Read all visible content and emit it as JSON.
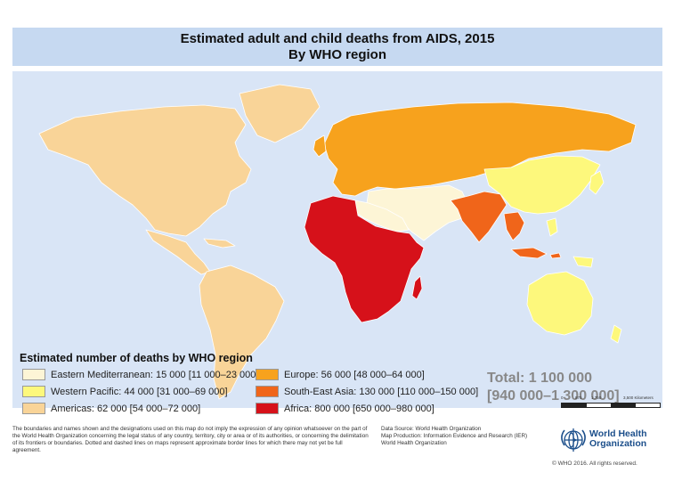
{
  "title": {
    "line1": "Estimated adult and child deaths from AIDS, 2015",
    "line2": "By WHO region"
  },
  "legend": {
    "title": "Estimated number of deaths by WHO region",
    "items": [
      {
        "label": "Eastern Mediterranean: 15 000 [11 000–23 000]",
        "color": "#fdf5d6"
      },
      {
        "label": "Western Pacific: 44 000 [31 000–69 000]",
        "color": "#fdf87c"
      },
      {
        "label": "Americas: 62 000 [54 000–72 000]",
        "color": "#f9d498"
      },
      {
        "label": "Europe: 56 000 [48 000–64 000]",
        "color": "#f7a21d"
      },
      {
        "label": "South-East Asia: 130 000 [110 000–150 000]",
        "color": "#f0651a"
      },
      {
        "label": "Africa: 800 000 [650 000–980 000]",
        "color": "#d6111a"
      }
    ]
  },
  "total": {
    "line1": "Total: 1 100 000",
    "line2": "[940 000–1 300 000]"
  },
  "scale": {
    "ticks": [
      "0",
      "875",
      "1,750",
      "3,500 Kilometers"
    ]
  },
  "disclaimer": "The boundaries and names shown and the designations used on this map do not imply the expression of any opinion whatsoever on the part of the World Health Organization concerning the legal status of any country, territory, city or area or of its authorities, or concerning the delimitation of its frontiers or boundaries. Dotted and dashed lines on maps represent approximate border lines for which there may not yet be full agreement.",
  "credits": {
    "source": "Data Source: World Health Organization",
    "production": "Map Production: Information Evidence and Research (IER)",
    "org": "World Health Organization"
  },
  "logo": {
    "line1": "World Health",
    "line2": "Organization",
    "icon": "who-emblem-icon"
  },
  "copyright": "© WHO 2016. All rights reserved.",
  "colors": {
    "ocean": "#d9e5f6",
    "title_bg": "#c6d9f1",
    "border": "#ffffff"
  }
}
